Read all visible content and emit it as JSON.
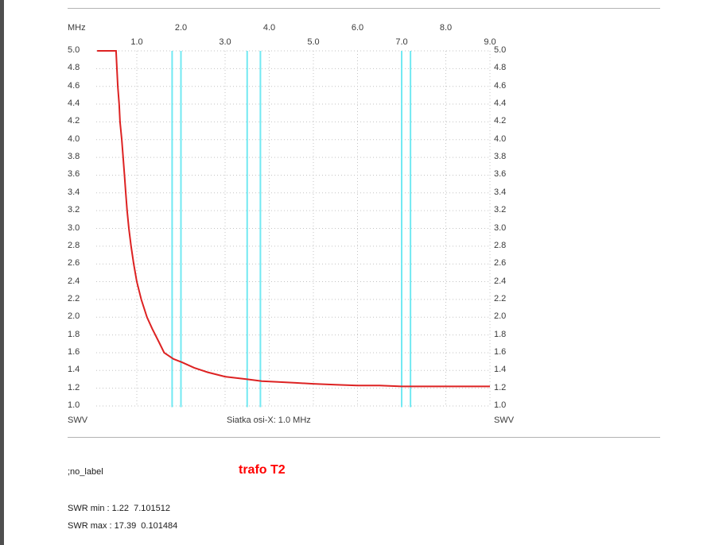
{
  "labels": {
    "x_axis_unit": "MHz",
    "y_axis_name_left": "SWV",
    "y_axis_name_right": "SWV",
    "x_grid_caption": "Siatka osi-X: 1.0 MHz"
  },
  "footer": {
    "no_label": ";no_label",
    "title": "trafo T2",
    "swr_min_line": "SWR min : 1.22  7.101512",
    "swr_max_line": "SWR max : 17.39  0.101484"
  },
  "colors": {
    "curve": "#dd2222",
    "band_marker": "#72e9f2",
    "grid": "#c3c3c3",
    "title_red": "#ff0000",
    "separator": "#b3b3b3",
    "left_bar": "#4f4f4f",
    "label_text": "#3a3a3a"
  },
  "chart_data": {
    "type": "line",
    "title": "trafo T2",
    "xlabel": "MHz",
    "ylabel": "SWV",
    "x_range_mhz": [
      0.101484,
      9.0
    ],
    "ylim": [
      1.0,
      5.0
    ],
    "y_tick_step": 0.2,
    "x_grid_step_mhz": 1.0,
    "x_ticks_row_upper": [
      "2.0",
      "4.0",
      "6.0",
      "8.0"
    ],
    "x_ticks_row_lower": [
      "1.0",
      "3.0",
      "5.0",
      "7.0",
      "9.0"
    ],
    "grid_caption": "Siatka osi-X: 1.0 MHz",
    "clip_y_max": 5.0,
    "band_markers_mhz": [
      [
        1.8,
        2.0
      ],
      [
        3.5,
        3.8
      ],
      [
        7.0,
        7.2
      ]
    ],
    "series": [
      {
        "name": "SWR",
        "points": [
          [
            0.101484,
            17.39
          ],
          [
            0.2,
            11.5
          ],
          [
            0.3,
            8.2
          ],
          [
            0.4,
            6.3
          ],
          [
            0.5,
            5.2
          ],
          [
            0.53,
            5.0
          ],
          [
            0.55,
            4.8
          ],
          [
            0.57,
            4.6
          ],
          [
            0.6,
            4.4
          ],
          [
            0.62,
            4.2
          ],
          [
            0.66,
            4.0
          ],
          [
            0.69,
            3.8
          ],
          [
            0.72,
            3.6
          ],
          [
            0.75,
            3.4
          ],
          [
            0.78,
            3.2
          ],
          [
            0.82,
            3.0
          ],
          [
            0.87,
            2.8
          ],
          [
            0.93,
            2.6
          ],
          [
            1.0,
            2.4
          ],
          [
            1.1,
            2.2
          ],
          [
            1.23,
            2.0
          ],
          [
            1.35,
            1.87
          ],
          [
            1.5,
            1.72
          ],
          [
            1.62,
            1.6
          ],
          [
            1.83,
            1.53
          ],
          [
            2.03,
            1.49
          ],
          [
            2.3,
            1.43
          ],
          [
            2.6,
            1.38
          ],
          [
            3.0,
            1.33
          ],
          [
            3.52,
            1.3
          ],
          [
            3.83,
            1.28
          ],
          [
            4.2,
            1.27
          ],
          [
            4.6,
            1.26
          ],
          [
            5.0,
            1.25
          ],
          [
            5.5,
            1.24
          ],
          [
            6.0,
            1.23
          ],
          [
            6.5,
            1.23
          ],
          [
            7.0,
            1.22
          ],
          [
            7.101512,
            1.22
          ],
          [
            7.5,
            1.22
          ],
          [
            8.0,
            1.22
          ],
          [
            8.5,
            1.22
          ],
          [
            9.0,
            1.22
          ]
        ]
      }
    ],
    "annotations": {
      "swr_min": {
        "swr": 1.22,
        "freq_mhz": 7.101512
      },
      "swr_max": {
        "swr": 17.39,
        "freq_mhz": 0.101484
      }
    }
  }
}
